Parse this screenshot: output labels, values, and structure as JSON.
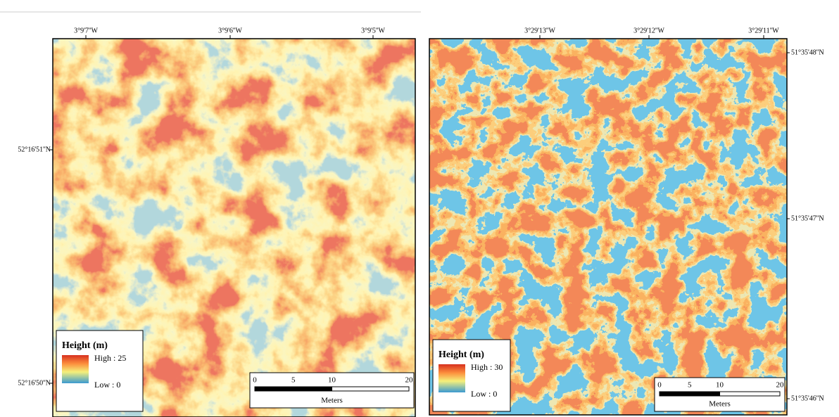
{
  "maps": [
    {
      "lon_labels": [
        "3°9'7''W",
        "3°9'6''W",
        "3°9'5''W"
      ],
      "lat_labels": [
        "52°16'51''N",
        "52°16'50''N"
      ],
      "legend": {
        "title": "Height (m)",
        "high": "High : 25",
        "low": "Low : 0"
      },
      "scale": {
        "ticks": [
          0,
          5,
          10,
          20
        ],
        "unit": "Meters"
      }
    },
    {
      "lon_labels": [
        "3°29'13''W",
        "3°29'12''W",
        "3°29'11''W"
      ],
      "lat_labels": [
        "51°35'48''N",
        "51°35'47''N",
        "51°35'46''N"
      ],
      "legend": {
        "title": "Height (m)",
        "high": "High : 30",
        "low": "Low : 0"
      },
      "scale": {
        "ticks": [
          0,
          5,
          10,
          20
        ],
        "unit": "Meters"
      }
    }
  ]
}
